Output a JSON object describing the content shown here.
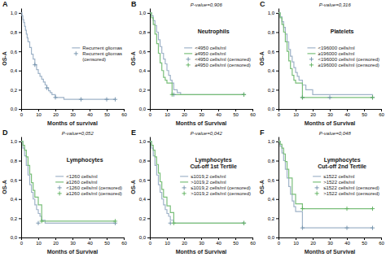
{
  "chart_data": [
    {
      "type": "line",
      "annotations": [
        "A"
      ],
      "xlabel": "Months of survival",
      "ylabel": "OS-A",
      "xlim": [
        0,
        60
      ],
      "ylim": [
        0,
        1.05
      ],
      "xticks": [
        0,
        10,
        20,
        30,
        40,
        50,
        60
      ],
      "yticks": [
        {
          "value": 0.0,
          "label": "0,0"
        },
        {
          "value": 0.2,
          "label": "0,2"
        },
        {
          "value": 0.4,
          "label": "0,4"
        },
        {
          "value": 0.6,
          "label": "0,6"
        },
        {
          "value": 0.8,
          "label": "0,8"
        },
        {
          "value": 1.0,
          "label": "1,0"
        }
      ],
      "grid": false,
      "legend": "right",
      "series": [
        {
          "name": "Recurrent gliomas",
          "type": "step",
          "color": "#9fb3c8",
          "x": [
            0,
            0.5,
            1,
            1.5,
            2,
            2.5,
            3,
            3.5,
            4,
            5,
            6,
            7,
            8,
            9,
            10,
            11,
            12,
            13,
            14,
            15,
            16,
            17,
            18,
            20,
            25,
            30,
            55
          ],
          "values": [
            1.0,
            0.97,
            0.93,
            0.9,
            0.86,
            0.82,
            0.78,
            0.74,
            0.7,
            0.64,
            0.57,
            0.52,
            0.46,
            0.41,
            0.37,
            0.34,
            0.31,
            0.28,
            0.25,
            0.22,
            0.19,
            0.17,
            0.15,
            0.12,
            0.1,
            0.1,
            0.1
          ]
        },
        {
          "name": "Recurrent gliomas\n(censored)",
          "type": "scatter",
          "marker": "+",
          "color": "#7090aa",
          "x": [
            8,
            15,
            20,
            35,
            50,
            55
          ],
          "values": [
            0.46,
            0.22,
            0.12,
            0.1,
            0.1,
            0.1
          ]
        }
      ]
    },
    {
      "type": "line",
      "title": "Neutrophils",
      "annotations": [
        "B",
        "P-value=0,906"
      ],
      "xlabel": "Months of Survival",
      "ylabel": "OS-A",
      "xlim": [
        0,
        60
      ],
      "ylim": [
        0,
        1.05
      ],
      "xticks": [
        0,
        10,
        20,
        30,
        40,
        50,
        60
      ],
      "yticks": [
        {
          "value": 0.0,
          "label": "0,0"
        },
        {
          "value": 0.2,
          "label": "0,2"
        },
        {
          "value": 0.4,
          "label": "0,4"
        },
        {
          "value": 0.6,
          "label": "0,6"
        },
        {
          "value": 0.8,
          "label": "0,8"
        },
        {
          "value": 1.0,
          "label": "1,0"
        }
      ],
      "grid": false,
      "legend": "right",
      "series": [
        {
          "name": "<4950 cells/ml",
          "type": "step",
          "color": "#9fb3c8",
          "x": [
            0,
            1,
            2,
            3,
            4,
            5,
            6,
            7,
            8,
            9,
            10,
            11,
            12,
            13,
            14,
            16,
            18,
            55
          ],
          "values": [
            1.0,
            0.97,
            0.92,
            0.87,
            0.8,
            0.72,
            0.65,
            0.58,
            0.52,
            0.47,
            0.4,
            0.35,
            0.3,
            0.27,
            0.2,
            0.17,
            0.15,
            0.15
          ]
        },
        {
          "name": "≥4950 cells/ml",
          "type": "step",
          "color": "#7abf7a",
          "x": [
            0,
            1,
            2,
            3,
            4,
            5,
            6,
            7,
            8,
            9,
            10,
            11,
            13,
            55
          ],
          "values": [
            1.0,
            0.95,
            0.88,
            0.78,
            0.68,
            0.58,
            0.48,
            0.4,
            0.33,
            0.3,
            0.27,
            0.27,
            0.15,
            0.15
          ]
        },
        {
          "name": "<4950 cells/ml (censored)",
          "type": "scatter",
          "marker": "+",
          "color": "#7090aa",
          "x": [
            14,
            55
          ],
          "values": [
            0.15,
            0.15
          ]
        },
        {
          "name": "≥4950 cells/ml (censored)",
          "type": "scatter",
          "marker": "+",
          "color": "#5aaf5a",
          "x": [
            13,
            55
          ],
          "values": [
            0.15,
            0.15
          ]
        }
      ]
    },
    {
      "type": "line",
      "title": "Platelets",
      "annotations": [
        "C",
        "P-value=0,316"
      ],
      "xlabel": "Months of Survival",
      "ylabel": "OS-A",
      "xlim": [
        0,
        60
      ],
      "ylim": [
        0,
        1.05
      ],
      "xticks": [
        0,
        10,
        20,
        30,
        40,
        50,
        60
      ],
      "yticks": [
        {
          "value": 0.0,
          "label": "0,0"
        },
        {
          "value": 0.2,
          "label": "0,2"
        },
        {
          "value": 0.4,
          "label": "0,4"
        },
        {
          "value": 0.6,
          "label": "0,6"
        },
        {
          "value": 0.8,
          "label": "0,8"
        },
        {
          "value": 1.0,
          "label": "1,0"
        }
      ],
      "grid": false,
      "legend": "right",
      "series": [
        {
          "name": "<196000 cells/ml",
          "type": "step",
          "color": "#9fb3c8",
          "x": [
            0,
            1,
            2,
            3,
            4,
            5,
            6,
            7,
            8,
            9,
            10,
            11,
            12,
            14,
            16,
            20,
            55
          ],
          "values": [
            1.0,
            0.96,
            0.91,
            0.85,
            0.78,
            0.7,
            0.62,
            0.55,
            0.49,
            0.43,
            0.38,
            0.34,
            0.3,
            0.25,
            0.2,
            0.15,
            0.12
          ]
        },
        {
          "name": "≥196000 cells/ml",
          "type": "step",
          "color": "#7abf7a",
          "x": [
            0,
            1,
            2,
            3,
            4,
            5,
            6,
            7,
            8,
            9,
            10,
            11,
            14,
            55
          ],
          "values": [
            1.0,
            0.95,
            0.88,
            0.8,
            0.7,
            0.6,
            0.5,
            0.42,
            0.35,
            0.3,
            0.27,
            0.27,
            0.12,
            0.12
          ]
        },
        {
          "name": "<196000 cells/ml (censored)",
          "type": "scatter",
          "marker": "+",
          "color": "#7090aa",
          "x": [
            14,
            30,
            55
          ],
          "values": [
            0.12,
            0.12,
            0.12
          ]
        },
        {
          "name": "≥196000 cells/ml (censored)",
          "type": "scatter",
          "marker": "+",
          "color": "#5aaf5a",
          "x": [
            14,
            55
          ],
          "values": [
            0.12,
            0.12
          ]
        }
      ]
    },
    {
      "type": "line",
      "title": "Lymphocytes",
      "annotations": [
        "D",
        "P-value=0,052"
      ],
      "xlabel": "Months of Survival",
      "ylabel": "OS-A",
      "xlim": [
        0,
        60
      ],
      "ylim": [
        0,
        1.05
      ],
      "xticks": [
        0,
        10,
        20,
        30,
        40,
        50,
        60
      ],
      "yticks": [
        {
          "value": 0.0,
          "label": "0,0"
        },
        {
          "value": 0.2,
          "label": "0,2"
        },
        {
          "value": 0.4,
          "label": "0,4"
        },
        {
          "value": 0.6,
          "label": "0,6"
        },
        {
          "value": 0.8,
          "label": "0,8"
        },
        {
          "value": 1.0,
          "label": "1,0"
        }
      ],
      "grid": false,
      "legend": "right",
      "series": [
        {
          "name": "<1260 cells/ml",
          "type": "step",
          "color": "#9fb3c8",
          "x": [
            0,
            1,
            2,
            3,
            4,
            5,
            6,
            7,
            8,
            9,
            10,
            11,
            12,
            14,
            55
          ],
          "values": [
            1.0,
            0.93,
            0.85,
            0.75,
            0.65,
            0.55,
            0.47,
            0.4,
            0.34,
            0.29,
            0.25,
            0.22,
            0.18,
            0.15,
            0.15
          ]
        },
        {
          "name": "≥1260 cells/ml",
          "type": "step",
          "color": "#7abf7a",
          "x": [
            0,
            1,
            2,
            3,
            4,
            5,
            6,
            7,
            8,
            10,
            12,
            14,
            55
          ],
          "values": [
            1.0,
            0.96,
            0.91,
            0.84,
            0.75,
            0.66,
            0.57,
            0.49,
            0.42,
            0.34,
            0.17,
            0.17,
            0.17
          ]
        },
        {
          "name": "<1260 cells/ml (censored)",
          "type": "scatter",
          "marker": "+",
          "color": "#7090aa",
          "x": [
            10,
            55
          ],
          "values": [
            0.15,
            0.15
          ]
        },
        {
          "name": "≥1260 cells/ml (censored)",
          "type": "scatter",
          "marker": "+",
          "color": "#5aaf5a",
          "x": [
            12,
            55
          ],
          "values": [
            0.17,
            0.17
          ]
        }
      ]
    },
    {
      "type": "line",
      "title": "Lymphocytes\nCut-off 1st Tertile",
      "annotations": [
        "E",
        "P-value=0,042"
      ],
      "xlabel": "Months of Survival",
      "ylabel": "OS-A",
      "xlim": [
        0,
        60
      ],
      "ylim": [
        0,
        1.05
      ],
      "xticks": [
        0,
        10,
        20,
        30,
        40,
        50,
        60
      ],
      "yticks": [
        {
          "value": 0.0,
          "label": "0,0"
        },
        {
          "value": 0.2,
          "label": "0,2"
        },
        {
          "value": 0.4,
          "label": "0,4"
        },
        {
          "value": 0.6,
          "label": "0,6"
        },
        {
          "value": 0.8,
          "label": "0,8"
        },
        {
          "value": 1.0,
          "label": "1,0"
        }
      ],
      "grid": false,
      "legend": "right",
      "series": [
        {
          "name": "≤1019,2 cells/ml",
          "type": "step",
          "color": "#9fb3c8",
          "x": [
            0,
            1,
            2,
            3,
            4,
            5,
            6,
            7,
            8,
            9,
            10,
            11,
            12,
            14,
            55
          ],
          "values": [
            1.0,
            0.93,
            0.85,
            0.75,
            0.65,
            0.55,
            0.47,
            0.4,
            0.34,
            0.29,
            0.25,
            0.22,
            0.18,
            0.15,
            0.15
          ]
        },
        {
          "name": ">1019,2 cells/ml",
          "type": "step",
          "color": "#7abf7a",
          "x": [
            0,
            1,
            2,
            3,
            4,
            5,
            6,
            7,
            8,
            10,
            12,
            14,
            55
          ],
          "values": [
            1.0,
            0.96,
            0.91,
            0.84,
            0.76,
            0.67,
            0.58,
            0.5,
            0.42,
            0.33,
            0.26,
            0.15,
            0.15
          ]
        },
        {
          "name": "≤1019,2 cells/ml (censored)",
          "type": "scatter",
          "marker": "+",
          "color": "#7090aa",
          "x": [
            12,
            55
          ],
          "values": [
            0.15,
            0.15
          ]
        },
        {
          "name": ">1019,2 cells/ml (censored)",
          "type": "scatter",
          "marker": "+",
          "color": "#5aaf5a",
          "x": [
            14,
            55
          ],
          "values": [
            0.15,
            0.15
          ]
        }
      ]
    },
    {
      "type": "line",
      "title": "Lymphocytes\nCut-off 2nd Tertile",
      "annotations": [
        "F",
        "P-value=0,048"
      ],
      "xlabel": "Months of Survival",
      "ylabel": "OS-A",
      "xlim": [
        0,
        60
      ],
      "ylim": [
        0,
        1.05
      ],
      "xticks": [
        0,
        10,
        20,
        30,
        40,
        50,
        60
      ],
      "yticks": [
        {
          "value": 0.0,
          "label": "0,0"
        },
        {
          "value": 0.2,
          "label": "0,2"
        },
        {
          "value": 0.4,
          "label": "0,4"
        },
        {
          "value": 0.6,
          "label": "0,6"
        },
        {
          "value": 0.8,
          "label": "0,8"
        },
        {
          "value": 1.0,
          "label": "1,0"
        }
      ],
      "grid": false,
      "legend": "right",
      "series": [
        {
          "name": "≤1522 cells/ml",
          "type": "step",
          "color": "#9fb3c8",
          "x": [
            0,
            1,
            2,
            3,
            4,
            5,
            6,
            7,
            8,
            9,
            10,
            14,
            16,
            55
          ],
          "values": [
            1.0,
            0.95,
            0.88,
            0.8,
            0.71,
            0.62,
            0.53,
            0.45,
            0.38,
            0.32,
            0.27,
            0.1,
            0.1,
            0.1
          ]
        },
        {
          "name": ">1522 cells/ml",
          "type": "step",
          "color": "#7abf7a",
          "x": [
            0,
            1,
            2,
            3,
            4,
            5,
            6,
            8,
            10,
            14,
            55
          ],
          "values": [
            1.0,
            0.97,
            0.93,
            0.87,
            0.79,
            0.71,
            0.62,
            0.45,
            0.35,
            0.3,
            0.3
          ]
        },
        {
          "name": "≤1522 cells/ml (censored)",
          "type": "scatter",
          "marker": "+",
          "color": "#7090aa",
          "x": [
            14,
            40,
            55
          ],
          "values": [
            0.1,
            0.1,
            0.1
          ]
        },
        {
          "name": ">1522 cells/ml (censored)",
          "type": "scatter",
          "marker": "+",
          "color": "#5aaf5a",
          "x": [
            14,
            40,
            55
          ],
          "values": [
            0.3,
            0.3,
            0.3
          ]
        }
      ]
    }
  ]
}
